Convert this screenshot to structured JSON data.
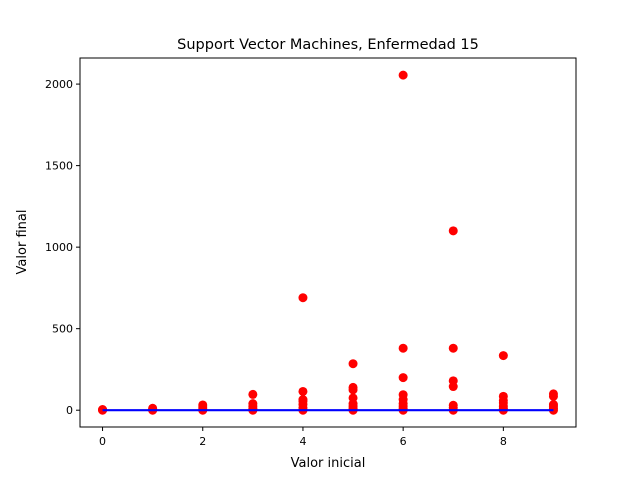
{
  "chart_data": {
    "type": "scatter",
    "title": "Support Vector Machines, Enfermedad 15",
    "xlabel": "Valor inicial",
    "ylabel": "Valor final",
    "xlim": [
      -0.45,
      9.45
    ],
    "ylim": [
      -103,
      2160
    ],
    "x_ticks": [
      0,
      2,
      4,
      6,
      8
    ],
    "y_ticks": [
      0,
      500,
      1000,
      1500,
      2000
    ],
    "grid": false,
    "series": [
      {
        "kind": "scatter",
        "color": "#ff0000",
        "points": [
          [
            0,
            0
          ],
          [
            0,
            2
          ],
          [
            0,
            4
          ],
          [
            1,
            0
          ],
          [
            1,
            5
          ],
          [
            1,
            12
          ],
          [
            2,
            0
          ],
          [
            2,
            8
          ],
          [
            2,
            20
          ],
          [
            2,
            32
          ],
          [
            3,
            0
          ],
          [
            3,
            10
          ],
          [
            3,
            25
          ],
          [
            3,
            40
          ],
          [
            3,
            97
          ],
          [
            4,
            0
          ],
          [
            4,
            15
          ],
          [
            4,
            35
          ],
          [
            4,
            55
          ],
          [
            4,
            65
          ],
          [
            4,
            115
          ],
          [
            4,
            690
          ],
          [
            5,
            0
          ],
          [
            5,
            10
          ],
          [
            5,
            25
          ],
          [
            5,
            40
          ],
          [
            5,
            75
          ],
          [
            5,
            125
          ],
          [
            5,
            140
          ],
          [
            5,
            285
          ],
          [
            6,
            0
          ],
          [
            6,
            10
          ],
          [
            6,
            25
          ],
          [
            6,
            40
          ],
          [
            6,
            65
          ],
          [
            6,
            95
          ],
          [
            6,
            200
          ],
          [
            6,
            380
          ],
          [
            6,
            2055
          ],
          [
            7,
            0
          ],
          [
            7,
            15
          ],
          [
            7,
            30
          ],
          [
            7,
            145
          ],
          [
            7,
            180
          ],
          [
            7,
            380
          ],
          [
            7,
            1100
          ],
          [
            8,
            0
          ],
          [
            8,
            10
          ],
          [
            8,
            25
          ],
          [
            8,
            45
          ],
          [
            8,
            60
          ],
          [
            8,
            85
          ],
          [
            8,
            335
          ],
          [
            9,
            0
          ],
          [
            9,
            10
          ],
          [
            9,
            25
          ],
          [
            9,
            35
          ],
          [
            9,
            85
          ],
          [
            9,
            100
          ]
        ]
      },
      {
        "kind": "line",
        "color": "#0000ff",
        "points": [
          [
            0,
            0
          ],
          [
            9,
            0
          ]
        ]
      }
    ]
  }
}
